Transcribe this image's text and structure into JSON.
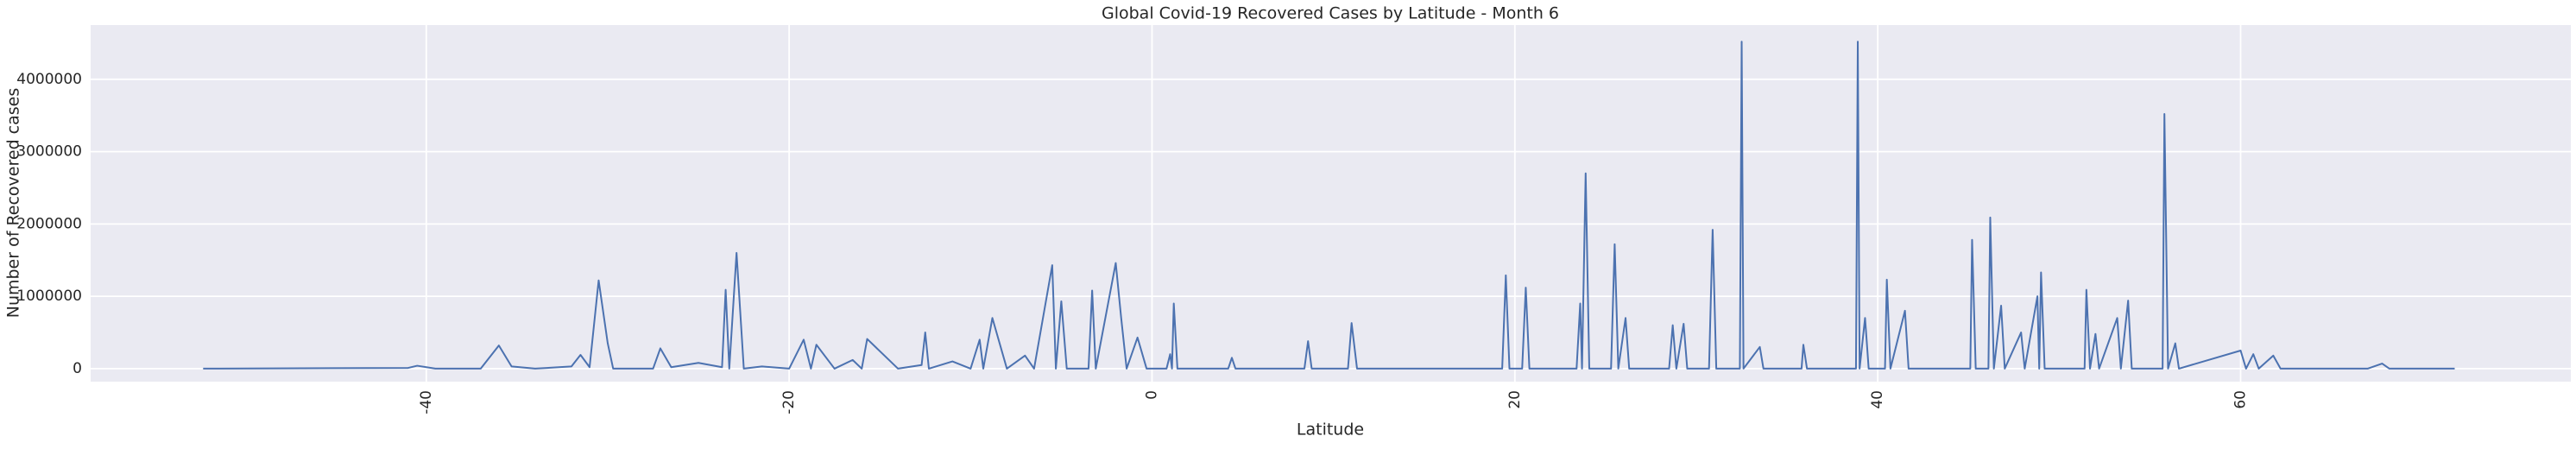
{
  "chart_data": {
    "type": "line",
    "title": "Global Covid-19 Recovered Cases by Latitude - Month 6",
    "x_label": "Latitude",
    "y_label": "Number of Recovered cases",
    "x": [
      -52.3,
      -41,
      -40.5,
      -39.5,
      -37,
      -36,
      -35.3,
      -34,
      -32,
      -31.5,
      -31,
      -30.5,
      -30,
      -29.7,
      -27.5,
      -27.1,
      -26.5,
      -25,
      -23.7,
      -23.5,
      -23.3,
      -22.9,
      -22.5,
      -21.5,
      -20,
      -19.2,
      -18.8,
      -18.5,
      -17.5,
      -16.5,
      -16,
      -15.7,
      -14,
      -12.7,
      -12.5,
      -12.3,
      -11,
      -10,
      -9.5,
      -9.3,
      -8.8,
      -8,
      -7,
      -6.5,
      -5.5,
      -5.3,
      -5,
      -4.7,
      -3.5,
      -3.3,
      -3.1,
      -2,
      -1.7,
      -1.4,
      -0.8,
      -0.3,
      0.8,
      1.0,
      1.1,
      1.2,
      1.4,
      4.2,
      4.4,
      4.6,
      8.4,
      8.6,
      8.8,
      10.8,
      11,
      11.3,
      19.3,
      19.5,
      19.7,
      20.4,
      20.6,
      20.8,
      23.4,
      23.6,
      23.7,
      23.9,
      24.1,
      25.3,
      25.5,
      25.7,
      26.1,
      26.3,
      28.5,
      28.7,
      28.9,
      29.3,
      29.5,
      30.7,
      30.9,
      31.1,
      32.4,
      32.5,
      32.6,
      33.5,
      33.7,
      35.8,
      35.9,
      36.1,
      38.8,
      38.9,
      39.0,
      39.3,
      39.5,
      40.4,
      40.5,
      40.7,
      41.5,
      41.7,
      45.1,
      45.2,
      45.4,
      46.1,
      46.2,
      46.4,
      46.8,
      47.0,
      47.9,
      48.1,
      48.8,
      48.9,
      49,
      49.2,
      51.4,
      51.5,
      51.7,
      52,
      52.2,
      53.2,
      53.4,
      53.8,
      54,
      55.7,
      55.8,
      56,
      56.4,
      56.6,
      60,
      60.3,
      60.7,
      61,
      61.8,
      62.2,
      67,
      67.8,
      68.2,
      71.8
    ],
    "series": [
      {
        "name": "Recovered",
        "color": "#4c72b0",
        "values": [
          0,
          10000,
          40000,
          0,
          0,
          320000,
          30000,
          0,
          30000,
          190000,
          20000,
          1220000,
          350000,
          0,
          0,
          280000,
          20000,
          80000,
          20000,
          1090000,
          0,
          1600000,
          0,
          30000,
          0,
          400000,
          0,
          330000,
          0,
          120000,
          0,
          410000,
          0,
          50000,
          500000,
          0,
          100000,
          0,
          400000,
          0,
          700000,
          0,
          180000,
          0,
          1430000,
          0,
          930000,
          0,
          0,
          1080000,
          0,
          1460000,
          700000,
          0,
          430000,
          0,
          0,
          200000,
          0,
          900000,
          0,
          0,
          150000,
          0,
          0,
          380000,
          0,
          0,
          630000,
          0,
          0,
          1290000,
          0,
          0,
          1120000,
          0,
          0,
          900000,
          0,
          2700000,
          0,
          0,
          1720000,
          0,
          700000,
          0,
          0,
          600000,
          0,
          620000,
          0,
          0,
          1920000,
          0,
          0,
          4520000,
          0,
          300000,
          0,
          0,
          330000,
          0,
          0,
          4520000,
          0,
          700000,
          0,
          0,
          1230000,
          0,
          800000,
          0,
          0,
          1780000,
          0,
          0,
          2090000,
          0,
          870000,
          0,
          500000,
          0,
          1000000,
          0,
          1330000,
          0,
          0,
          1090000,
          0,
          480000,
          0,
          700000,
          0,
          940000,
          0,
          0,
          3520000,
          0,
          350000,
          0,
          250000,
          0,
          200000,
          0,
          180000,
          0,
          0,
          70000,
          0,
          0
        ]
      }
    ],
    "xlim": [
      -58.5,
      78.2
    ],
    "ylim": [
      -180000,
      4750000
    ],
    "xticks": [
      -40,
      -20,
      0,
      20,
      40,
      60
    ],
    "yticks": [
      0,
      1000000,
      2000000,
      3000000,
      4000000
    ],
    "grid": true
  }
}
